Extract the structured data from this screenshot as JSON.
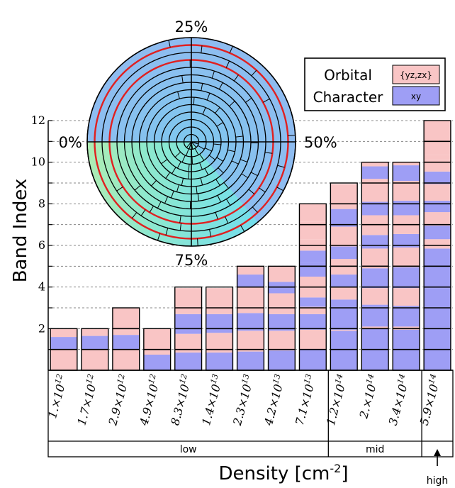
{
  "chart_data": {
    "type": "bar",
    "ylabel": "Band Index",
    "xlabel_main": "Density [cm",
    "xlabel_sup": "-2",
    "xlabel_end": "]",
    "ylim": [
      0,
      12
    ],
    "yticks": [
      "2",
      "4",
      "6",
      "8",
      "10",
      "12"
    ],
    "categories": [
      "1.×10^12",
      "1.7×10^12",
      "2.9×10^12",
      "4.9×10^12",
      "8.3×10^12",
      "1.4×10^13",
      "2.3×10^13",
      "4.2×10^13",
      "7.1×10^13",
      "1.2×10^14",
      "2.×10^14",
      "3.4×10^14",
      "5.9×10^14"
    ],
    "cat_mantissa": [
      "1.×10",
      "1.7×10",
      "2.9×10",
      "4.9×10",
      "8.3×10",
      "1.4×10",
      "2.3×10",
      "4.2×10",
      "7.1×10",
      "1.2×10",
      "2.×10",
      "3.4×10",
      "5.9×10"
    ],
    "cat_exp": [
      "12",
      "12",
      "12",
      "12",
      "12",
      "13",
      "13",
      "13",
      "13",
      "14",
      "14",
      "14",
      "14"
    ],
    "groups": [
      {
        "label": "low",
        "start": 0,
        "end": 8
      },
      {
        "label": "mid",
        "start": 9,
        "end": 11
      },
      {
        "label": "high",
        "start": 12,
        "end": 12
      }
    ],
    "legend": {
      "title_line1": "Orbital",
      "title_line2": "Character",
      "items": [
        {
          "name": "{yz,zx}",
          "color": "#f9c5c5"
        },
        {
          "name": "xy",
          "color": "#9e9ef5"
        }
      ]
    },
    "colors": {
      "yzzx": "#f9c5c5",
      "xy": "#9e9ef5"
    },
    "bars": [
      {
        "total": 2,
        "segs": [
          [
            "p",
            1
          ],
          [
            "b",
            0.6
          ],
          [
            "p",
            0.4
          ]
        ]
      },
      {
        "total": 2,
        "segs": [
          [
            "p",
            1
          ],
          [
            "b",
            0.65
          ],
          [
            "p",
            0.35
          ]
        ]
      },
      {
        "total": 3,
        "segs": [
          [
            "p",
            1
          ],
          [
            "b",
            0.7
          ],
          [
            "p",
            1.3
          ]
        ]
      },
      {
        "total": 2,
        "segs": [
          [
            "b",
            0.75
          ],
          [
            "p",
            0.25
          ],
          [
            "p",
            1
          ]
        ]
      },
      {
        "total": 4,
        "segs": [
          [
            "b",
            0.85
          ],
          [
            "p",
            0.15
          ],
          [
            "p",
            0.75
          ],
          [
            "b",
            0.95
          ],
          [
            "p",
            0.3
          ],
          [
            "p",
            0.95
          ]
        ]
      },
      {
        "total": 4,
        "segs": [
          [
            "b",
            0.85
          ],
          [
            "p",
            0.15
          ],
          [
            "p",
            0.8
          ],
          [
            "b",
            0.9
          ],
          [
            "p",
            0.3
          ],
          [
            "p",
            0.95
          ]
        ]
      },
      {
        "total": 5,
        "segs": [
          [
            "b",
            0.9
          ],
          [
            "p",
            0.1
          ],
          [
            "p",
            0.9
          ],
          [
            "b",
            0.85
          ],
          [
            "p",
            1.25
          ],
          [
            "b",
            0.6
          ],
          [
            "p",
            0.4
          ]
        ]
      },
      {
        "total": 5,
        "segs": [
          [
            "b",
            0.95
          ],
          [
            "p",
            0.05
          ],
          [
            "p",
            0.9
          ],
          [
            "b",
            0.8
          ],
          [
            "p",
            1.0
          ],
          [
            "b",
            0.55
          ],
          [
            "p",
            0.75
          ]
        ]
      },
      {
        "total": 8,
        "segs": [
          [
            "b",
            1.0
          ],
          [
            "p",
            0.95
          ],
          [
            "b",
            0.75
          ],
          [
            "p",
            0.35
          ],
          [
            "b",
            0.45
          ],
          [
            "p",
            1.0
          ],
          [
            "b",
            0.65
          ],
          [
            "b",
            0.6
          ],
          [
            "p",
            0.55
          ],
          [
            "p",
            0.85
          ],
          [
            "p",
            0.85
          ]
        ]
      },
      {
        "total": 9,
        "segs": [
          [
            "b",
            1.9
          ],
          [
            "p",
            0.05
          ],
          [
            "b",
            1.45
          ],
          [
            "p",
            0.6
          ],
          [
            "b",
            0.6
          ],
          [
            "p",
            0.75
          ],
          [
            "b",
            0.6
          ],
          [
            "p",
            0.95
          ],
          [
            "b",
            0.85
          ],
          [
            "p",
            1.2
          ]
        ]
      },
      {
        "total": 10,
        "segs": [
          [
            "b",
            2.0
          ],
          [
            "p",
            0.1
          ],
          [
            "b",
            1.05
          ],
          [
            "p",
            0.8
          ],
          [
            "b",
            0.95
          ],
          [
            "p",
            0.95
          ],
          [
            "b",
            0.65
          ],
          [
            "p",
            0.95
          ],
          [
            "b",
            0.65
          ],
          [
            "p",
            1.1
          ],
          [
            "b",
            0.6
          ],
          [
            "p",
            0.2
          ]
        ]
      },
      {
        "total": 10,
        "segs": [
          [
            "b",
            1.95
          ],
          [
            "p",
            0.15
          ],
          [
            "b",
            1.0
          ],
          [
            "p",
            0.85
          ],
          [
            "b",
            1.0
          ],
          [
            "p",
            0.95
          ],
          [
            "b",
            0.65
          ],
          [
            "p",
            0.9
          ],
          [
            "b",
            0.7
          ],
          [
            "p",
            0.95
          ],
          [
            "b",
            0.75
          ],
          [
            "p",
            0.15
          ]
        ]
      },
      {
        "total": 12,
        "segs": [
          [
            "b",
            2.05
          ],
          [
            "b",
            1.9
          ],
          [
            "b",
            1.9
          ],
          [
            "p",
            0.45
          ],
          [
            "b",
            0.65
          ],
          [
            "p",
            0.65
          ],
          [
            "b",
            0.55
          ],
          [
            "p",
            0.8
          ],
          [
            "b",
            0.6
          ],
          [
            "p",
            0.55
          ],
          [
            "p",
            0.25
          ],
          [
            "p",
            0.9
          ],
          [
            "p",
            0.75
          ]
        ]
      }
    ],
    "polar": {
      "labels": [
        "25%",
        "50%",
        "75%",
        "0%"
      ],
      "rings": 14,
      "red_rings": [
        11,
        13
      ],
      "fill_colors": [
        "#8fbcf0",
        "#66e0e8",
        "#a8f0b0"
      ]
    }
  }
}
